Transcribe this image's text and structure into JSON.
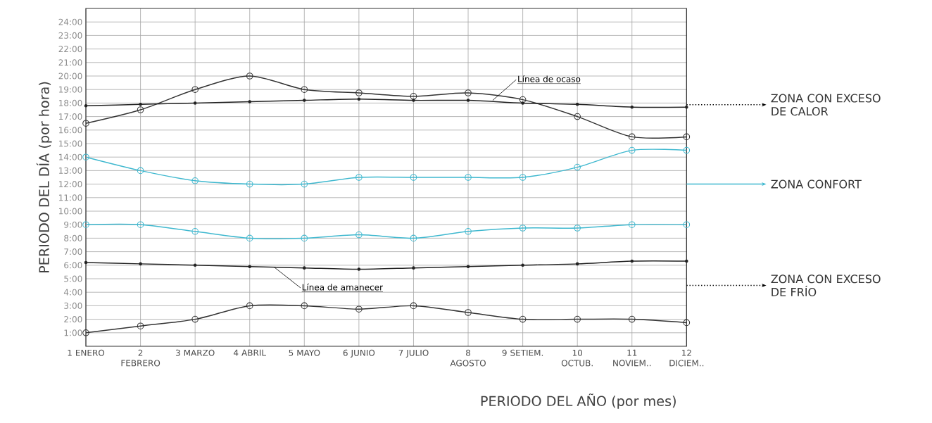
{
  "chart_data": {
    "type": "line",
    "xlabel": "PERIODO DEL AÑO (por mes)",
    "ylabel": "PERIODO DEL DÍA (por hora)",
    "categories": [
      "1 ENERO",
      "2 FEBRERO",
      "3 MARZO",
      "4 ABRIL",
      "5 MAYO",
      "6 JUNIO",
      "7 JULIO",
      "8 AGOSTO",
      "9 SETIEM.",
      "10 OCTUB.",
      "11 NOVIEM..",
      "12 DICIEM.."
    ],
    "ylim": [
      0,
      25
    ],
    "yticks": [
      {
        "value": 1,
        "label": "1:00"
      },
      {
        "value": 2,
        "label": "2:00"
      },
      {
        "value": 3,
        "label": "3:00"
      },
      {
        "value": 4,
        "label": "4:00"
      },
      {
        "value": 5,
        "label": "5:00"
      },
      {
        "value": 6,
        "label": "6:00"
      },
      {
        "value": 7,
        "label": "7:00"
      },
      {
        "value": 8,
        "label": "8:00"
      },
      {
        "value": 9,
        "label": "9:00"
      },
      {
        "value": 10,
        "label": "10:00"
      },
      {
        "value": 11,
        "label": "11:00"
      },
      {
        "value": 12,
        "label": "12:00"
      },
      {
        "value": 13,
        "label": "13:00"
      },
      {
        "value": 14,
        "label": "14:00"
      },
      {
        "value": 15,
        "label": "15:00"
      },
      {
        "value": 16,
        "label": "16:00"
      },
      {
        "value": 17,
        "label": "17:00"
      },
      {
        "value": 18,
        "label": "18:00"
      },
      {
        "value": 19,
        "label": "19:00"
      },
      {
        "value": 20,
        "label": "20:00"
      },
      {
        "value": 21,
        "label": "21:00"
      },
      {
        "value": 22,
        "label": "22:00"
      },
      {
        "value": 23,
        "label": "23:00"
      },
      {
        "value": 24,
        "label": "24:00"
      }
    ],
    "grid": true,
    "series": [
      {
        "color": "#333333",
        "marker": "circle",
        "values": [
          16.5,
          17.5,
          19,
          20,
          19,
          18.75,
          18.5,
          18.75,
          18.25,
          17,
          15.5,
          15.5
        ]
      },
      {
        "color": "#3fb8cf",
        "marker": "circle",
        "values": [
          14,
          13,
          12.25,
          12,
          12,
          12.5,
          12.5,
          12.5,
          12.5,
          13.25,
          14.5,
          14.5
        ]
      },
      {
        "color": "#3fb8cf",
        "marker": "circle",
        "values": [
          9,
          9,
          8.5,
          8,
          8,
          8.25,
          8,
          8.5,
          8.75,
          8.75,
          9,
          9
        ]
      },
      {
        "color": "#333333",
        "marker": "circle",
        "values": [
          1,
          1.5,
          2,
          3,
          3,
          2.75,
          3,
          2.5,
          2,
          2,
          2,
          1.75
        ]
      },
      {
        "color": "#222222",
        "marker": "square",
        "values": [
          17.8,
          17.9,
          18,
          18.1,
          18.2,
          18.3,
          18.2,
          18.2,
          18,
          17.9,
          17.7,
          17.7
        ]
      },
      {
        "color": "#222222",
        "marker": "square",
        "values": [
          6.2,
          6.1,
          6,
          5.9,
          5.8,
          5.7,
          5.8,
          5.9,
          6,
          6.1,
          6.3,
          6.3
        ]
      }
    ],
    "annotations": [
      "ZONA CON EXCESO DE CALOR",
      "ZONA CONFORT",
      "ZONA CON EXCESO DE FRÍO",
      {
        "text": "Línea de ocaso",
        "y": 18.2
      },
      {
        "text": "Línea de amanecer",
        "y": 5.85
      }
    ]
  }
}
